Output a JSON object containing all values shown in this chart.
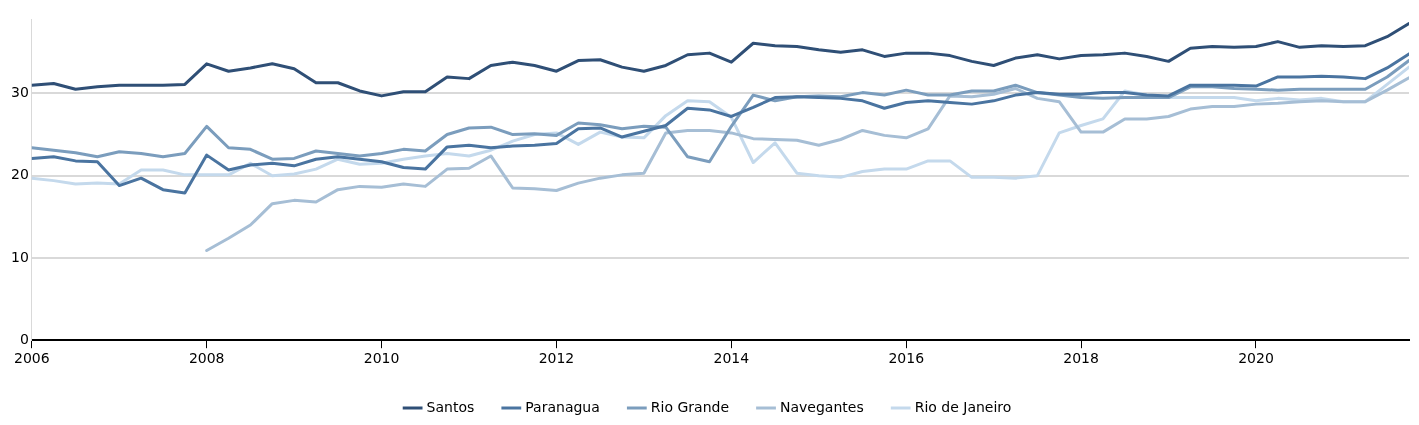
{
  "chart_data": {
    "type": "line",
    "x": [
      2006,
      2006.25,
      2006.5,
      2006.75,
      2007,
      2007.25,
      2007.5,
      2007.75,
      2008,
      2008.25,
      2008.5,
      2008.75,
      2009,
      2009.25,
      2009.5,
      2009.75,
      2010,
      2010.25,
      2010.5,
      2010.75,
      2011,
      2011.25,
      2011.5,
      2011.75,
      2012,
      2012.25,
      2012.5,
      2012.75,
      2013,
      2013.25,
      2013.5,
      2013.75,
      2014,
      2014.25,
      2014.5,
      2014.75,
      2015,
      2015.25,
      2015.5,
      2015.75,
      2016,
      2016.25,
      2016.5,
      2016.75,
      2017,
      2017.25,
      2017.5,
      2017.75,
      2018,
      2018.25,
      2018.5,
      2018.75,
      2019,
      2019.25,
      2019.5,
      2019.75,
      2020,
      2020.25,
      2020.5,
      2020.75,
      2021,
      2021.25,
      2021.5,
      2021.75
    ],
    "series": [
      {
        "name": "Santos",
        "color": "#2f4f76",
        "values": [
          31.0,
          31.2,
          30.5,
          30.8,
          31.0,
          31.0,
          31.0,
          31.1,
          33.6,
          32.7,
          33.1,
          33.6,
          33.0,
          31.3,
          31.3,
          30.3,
          29.7,
          30.2,
          30.2,
          32.0,
          31.8,
          33.4,
          33.8,
          33.4,
          32.7,
          34.0,
          34.1,
          33.2,
          32.7,
          33.4,
          34.7,
          34.9,
          33.8,
          36.1,
          35.8,
          35.7,
          35.3,
          35.0,
          35.3,
          34.5,
          34.9,
          34.9,
          34.6,
          33.9,
          33.4,
          34.3,
          34.7,
          34.2,
          34.6,
          34.7,
          34.9,
          34.5,
          33.9,
          35.5,
          35.7,
          35.6,
          35.7,
          36.3,
          35.6,
          35.8,
          35.7,
          35.8,
          36.9,
          38.5
        ]
      },
      {
        "name": "Paranagua",
        "color": "#4a74a0",
        "values": [
          22.1,
          22.3,
          21.8,
          21.7,
          18.8,
          19.7,
          18.3,
          17.9,
          22.5,
          20.7,
          21.3,
          21.5,
          21.2,
          22.0,
          22.3,
          22.0,
          21.7,
          21.0,
          20.8,
          23.5,
          23.7,
          23.4,
          23.6,
          23.7,
          23.9,
          25.7,
          25.8,
          24.7,
          25.4,
          26.1,
          28.2,
          28.0,
          27.2,
          28.3,
          29.5,
          29.6,
          29.5,
          29.4,
          29.1,
          28.2,
          28.9,
          29.1,
          28.9,
          28.7,
          29.1,
          29.8,
          30.1,
          29.9,
          29.9,
          30.1,
          30.1,
          29.8,
          29.7,
          31.0,
          31.0,
          31.0,
          30.9,
          32.0,
          32.0,
          32.1,
          32.0,
          31.8,
          33.1,
          34.8
        ]
      },
      {
        "name": "Rio Grande",
        "color": "#7b9dbd",
        "values": [
          23.4,
          23.1,
          22.8,
          22.3,
          22.9,
          22.7,
          22.3,
          22.7,
          26.0,
          23.4,
          23.2,
          22.0,
          22.1,
          23.0,
          22.7,
          22.4,
          22.7,
          23.2,
          23.0,
          25.0,
          25.8,
          25.9,
          25.0,
          25.1,
          24.9,
          26.4,
          26.2,
          25.7,
          26.0,
          25.9,
          22.3,
          21.7,
          26.0,
          29.8,
          29.1,
          29.6,
          29.7,
          29.6,
          30.1,
          29.8,
          30.4,
          29.8,
          29.8,
          30.3,
          30.3,
          31.0,
          30.1,
          29.8,
          29.5,
          29.4,
          29.5,
          29.5,
          29.5,
          30.8,
          30.8,
          30.6,
          30.5,
          30.4,
          30.5,
          30.5,
          30.5,
          30.5,
          32.0,
          34.0
        ]
      },
      {
        "name": "Navegantes",
        "color": "#a6bed5",
        "values": [
          null,
          null,
          null,
          null,
          null,
          null,
          null,
          null,
          10.9,
          12.4,
          14.0,
          16.6,
          17.0,
          16.8,
          18.3,
          18.7,
          18.6,
          19.0,
          18.7,
          20.8,
          20.9,
          22.4,
          18.5,
          18.4,
          18.2,
          19.1,
          19.7,
          20.1,
          20.3,
          25.2,
          25.5,
          25.5,
          25.2,
          24.5,
          24.4,
          24.3,
          23.7,
          24.4,
          25.5,
          24.9,
          24.6,
          25.7,
          29.7,
          29.6,
          29.9,
          30.6,
          29.4,
          29.0,
          25.3,
          25.3,
          26.9,
          26.9,
          27.2,
          28.1,
          28.4,
          28.4,
          28.7,
          28.8,
          29.0,
          29.1,
          29.0,
          29.0,
          30.4,
          31.9
        ]
      },
      {
        "name": "Rio de Janeiro",
        "color": "#c4d9ec",
        "values": [
          19.7,
          19.4,
          19.0,
          19.1,
          19.0,
          20.7,
          20.7,
          20.1,
          20.1,
          20.1,
          21.5,
          20.0,
          20.2,
          20.8,
          22.0,
          21.4,
          21.5,
          22.0,
          22.4,
          22.7,
          22.4,
          23.1,
          24.2,
          25.0,
          25.2,
          23.8,
          25.3,
          24.7,
          24.6,
          27.3,
          29.1,
          29.0,
          27.1,
          21.6,
          24.0,
          20.3,
          20.0,
          19.8,
          20.5,
          20.8,
          20.8,
          21.8,
          21.8,
          19.8,
          19.8,
          19.7,
          20.0,
          25.2,
          26.1,
          26.9,
          30.3,
          29.8,
          29.5,
          29.5,
          29.5,
          29.5,
          29.1,
          29.4,
          29.2,
          29.4,
          29.0,
          29.0,
          31.1,
          33.2
        ]
      }
    ],
    "xlim": [
      2006,
      2021.75
    ],
    "xticks": [
      2006,
      2008,
      2010,
      2012,
      2014,
      2016,
      2018,
      2020
    ],
    "ylim": [
      0,
      39
    ],
    "yticks": [
      0,
      10,
      20,
      30
    ],
    "grid": "y",
    "legend": "bottom",
    "marker": "none",
    "line_style": "solid"
  }
}
